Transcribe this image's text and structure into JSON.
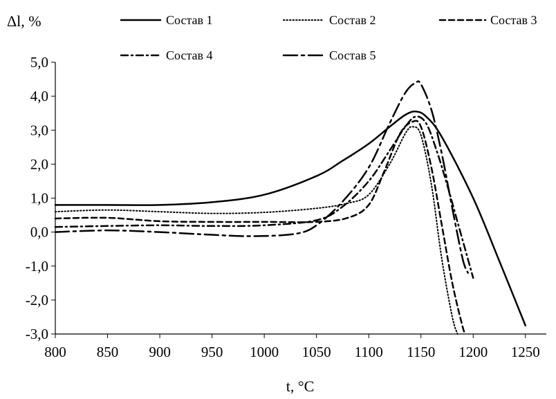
{
  "chart_data": {
    "type": "line",
    "title": "",
    "xlabel": "t, °C",
    "ylabel": "Δl, %",
    "xlim": [
      800,
      1270
    ],
    "ylim": [
      -3.0,
      5.0
    ],
    "x_ticks": [
      800,
      850,
      900,
      950,
      1000,
      1050,
      1100,
      1150,
      1200,
      1250
    ],
    "y_ticks": [
      5.0,
      4.0,
      3.0,
      2.0,
      1.0,
      0.0,
      -1.0,
      -2.0,
      -3.0
    ],
    "x_tick_labels": [
      "800",
      "850",
      "900",
      "950",
      "1000",
      "1050",
      "1100",
      "1150",
      "1200",
      "1250"
    ],
    "y_tick_labels": [
      "5,0",
      "4,0",
      "3,0",
      "2,0",
      "1,0",
      "0,0",
      "-1,0",
      "-2,0",
      "-3,0"
    ],
    "grid": false,
    "legend_position": "top",
    "series": [
      {
        "name": "Состав 1",
        "color": "#000000",
        "dash": "solid",
        "x": [
          800,
          850,
          900,
          950,
          1000,
          1050,
          1075,
          1100,
          1120,
          1135,
          1145,
          1155,
          1170,
          1200,
          1225,
          1250
        ],
        "y": [
          0.8,
          0.8,
          0.8,
          0.88,
          1.1,
          1.65,
          2.1,
          2.6,
          3.1,
          3.45,
          3.55,
          3.4,
          2.8,
          1.0,
          -0.85,
          -2.75
        ]
      },
      {
        "name": "Состав 2",
        "color": "#000000",
        "dash": "dotted",
        "x": [
          800,
          850,
          900,
          950,
          1000,
          1050,
          1080,
          1100,
          1120,
          1135,
          1142,
          1150,
          1160,
          1170,
          1180,
          1185
        ],
        "y": [
          0.6,
          0.65,
          0.6,
          0.55,
          0.58,
          0.7,
          0.85,
          1.1,
          2.0,
          2.9,
          3.1,
          2.85,
          1.4,
          -0.8,
          -2.5,
          -3.0
        ]
      },
      {
        "name": "Состав 3",
        "color": "#000000",
        "dash": "dashed",
        "x": [
          800,
          850,
          900,
          950,
          1000,
          1050,
          1080,
          1100,
          1115,
          1130,
          1142,
          1150,
          1160,
          1170,
          1180,
          1190,
          1193
        ],
        "y": [
          0.4,
          0.42,
          0.32,
          0.3,
          0.3,
          0.3,
          0.42,
          0.8,
          1.8,
          2.9,
          3.25,
          3.1,
          1.9,
          0.2,
          -1.5,
          -2.8,
          -3.0
        ]
      },
      {
        "name": "Состав 4",
        "color": "#000000",
        "dash": "dashdot",
        "x": [
          800,
          850,
          900,
          950,
          1000,
          1050,
          1075,
          1100,
          1120,
          1135,
          1145,
          1155,
          1165,
          1175,
          1185,
          1195,
          1200
        ],
        "y": [
          0.15,
          0.18,
          0.2,
          0.18,
          0.2,
          0.35,
          0.75,
          1.5,
          2.4,
          3.1,
          3.4,
          3.2,
          2.4,
          1.4,
          0.3,
          -0.8,
          -1.35
        ]
      },
      {
        "name": "Состав 5",
        "color": "#000000",
        "dash": "longdash",
        "x": [
          800,
          850,
          900,
          950,
          990,
          1030,
          1050,
          1075,
          1100,
          1120,
          1135,
          1145,
          1150,
          1160,
          1170,
          1180,
          1190,
          1195
        ],
        "y": [
          0.0,
          0.05,
          0.0,
          -0.08,
          -0.12,
          -0.05,
          0.2,
          0.9,
          1.9,
          3.2,
          4.1,
          4.4,
          4.35,
          3.6,
          2.3,
          0.7,
          -0.8,
          -1.2
        ]
      }
    ]
  }
}
